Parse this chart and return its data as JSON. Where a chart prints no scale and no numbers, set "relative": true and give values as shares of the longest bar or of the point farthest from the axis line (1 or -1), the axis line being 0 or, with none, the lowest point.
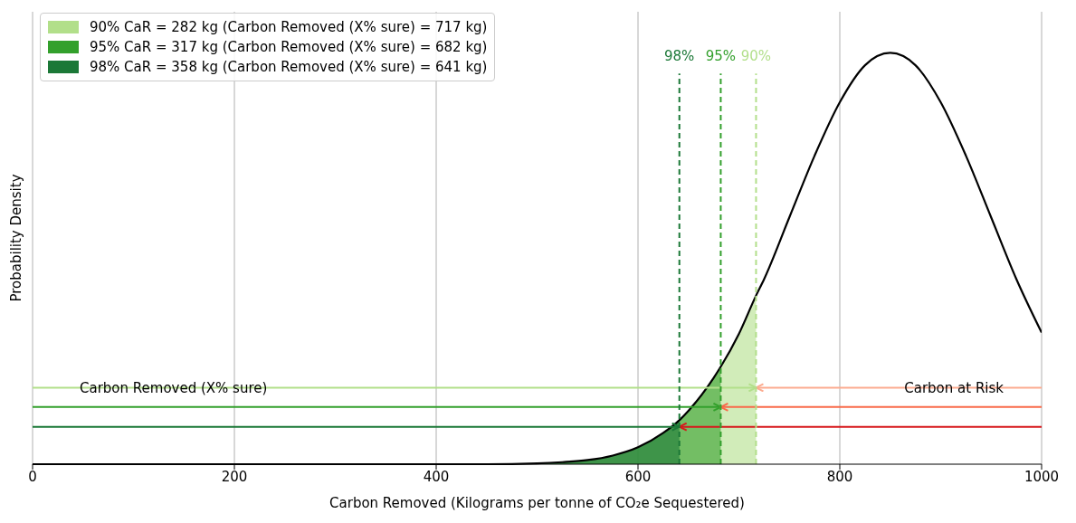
{
  "chart_data": {
    "type": "line",
    "relative": true,
    "xlabel": "Carbon Removed (Kilograms per tonne of CO₂e Sequestered)",
    "ylabel": "Probability Density",
    "xlim": [
      0,
      1000
    ],
    "xticks": [
      0,
      200,
      400,
      600,
      800,
      1000
    ],
    "grid": "x",
    "legend": "top left",
    "series": [
      {
        "type": "area",
        "name": "90% CaR = 282 kg (Carbon Removed (X% sure) = 717 kg)",
        "color": "#b2df8a",
        "x": [
          0,
          400,
          450,
          500,
          525,
          550,
          575,
          600,
          625,
          641,
          650,
          675,
          682,
          700,
          717
        ],
        "values": [
          0,
          0,
          0,
          0.002,
          0.005,
          0.01,
          0.021,
          0.041,
          0.076,
          0.107,
          0.13,
          0.21,
          0.237,
          0.317,
          0.41
        ]
      },
      {
        "type": "area",
        "name": "95% CaR = 317 kg (Carbon Removed (X% sure) = 682 kg)",
        "color": "#33a02c",
        "x": [
          0,
          400,
          450,
          500,
          525,
          550,
          575,
          600,
          625,
          641,
          650,
          675,
          682
        ],
        "values": [
          0,
          0,
          0,
          0.002,
          0.005,
          0.01,
          0.021,
          0.041,
          0.076,
          0.107,
          0.13,
          0.21,
          0.237
        ]
      },
      {
        "type": "area",
        "name": "98% CaR = 358 kg (Carbon Removed (X% sure) = 641 kg)",
        "color": "#1b7837",
        "x": [
          0,
          400,
          450,
          500,
          525,
          550,
          575,
          600,
          625,
          641
        ],
        "values": [
          0,
          0,
          0,
          0.002,
          0.005,
          0.01,
          0.021,
          0.041,
          0.076,
          0.107
        ]
      },
      {
        "type": "line",
        "color": "#000000",
        "x": [
          0,
          400,
          450,
          500,
          525,
          550,
          575,
          600,
          625,
          641,
          650,
          675,
          682,
          700,
          717,
          725,
          750,
          775,
          800,
          825,
          850,
          875,
          900,
          925,
          950,
          975,
          1000
        ],
        "values": [
          0,
          0,
          0,
          0.002,
          0.005,
          0.01,
          0.021,
          0.041,
          0.076,
          0.107,
          0.13,
          0.21,
          0.237,
          0.317,
          0.41,
          0.45,
          0.6,
          0.75,
          0.88,
          0.97,
          1,
          0.97,
          0.88,
          0.75,
          0.6,
          0.45,
          0.32
        ]
      },
      {
        "color": "#b2df8a",
        "x": [
          0,
          717
        ],
        "values": [
          0.186,
          0.186
        ]
      },
      {
        "color": "#33a02c",
        "x": [
          0,
          682
        ],
        "values": [
          0.139,
          0.139
        ]
      },
      {
        "color": "#1b7837",
        "x": [
          0,
          641
        ],
        "values": [
          0.091,
          0.091
        ]
      },
      {
        "color": "#fcab8f",
        "x": [
          1000,
          717
        ],
        "values": [
          0.186,
          0.186
        ]
      },
      {
        "color": "#f96a4a",
        "x": [
          1000,
          682
        ],
        "values": [
          0.139,
          0.139
        ]
      },
      {
        "color": "#d7191c",
        "x": [
          1000,
          641
        ],
        "values": [
          0.091,
          0.091
        ]
      }
    ],
    "ref_lines": [
      {
        "axis": "x",
        "value": 717,
        "color": "#b2df8a",
        "line_style": "dashed"
      },
      {
        "axis": "x",
        "value": 682,
        "color": "#33a02c",
        "line_style": "dashed"
      },
      {
        "axis": "x",
        "value": 641,
        "color": "#1b7837",
        "line_style": "dashed"
      }
    ],
    "annotations": [
      "Carbon Removed (X% sure)",
      "Carbon at Risk",
      "90%",
      "95%",
      "98%"
    ]
  }
}
